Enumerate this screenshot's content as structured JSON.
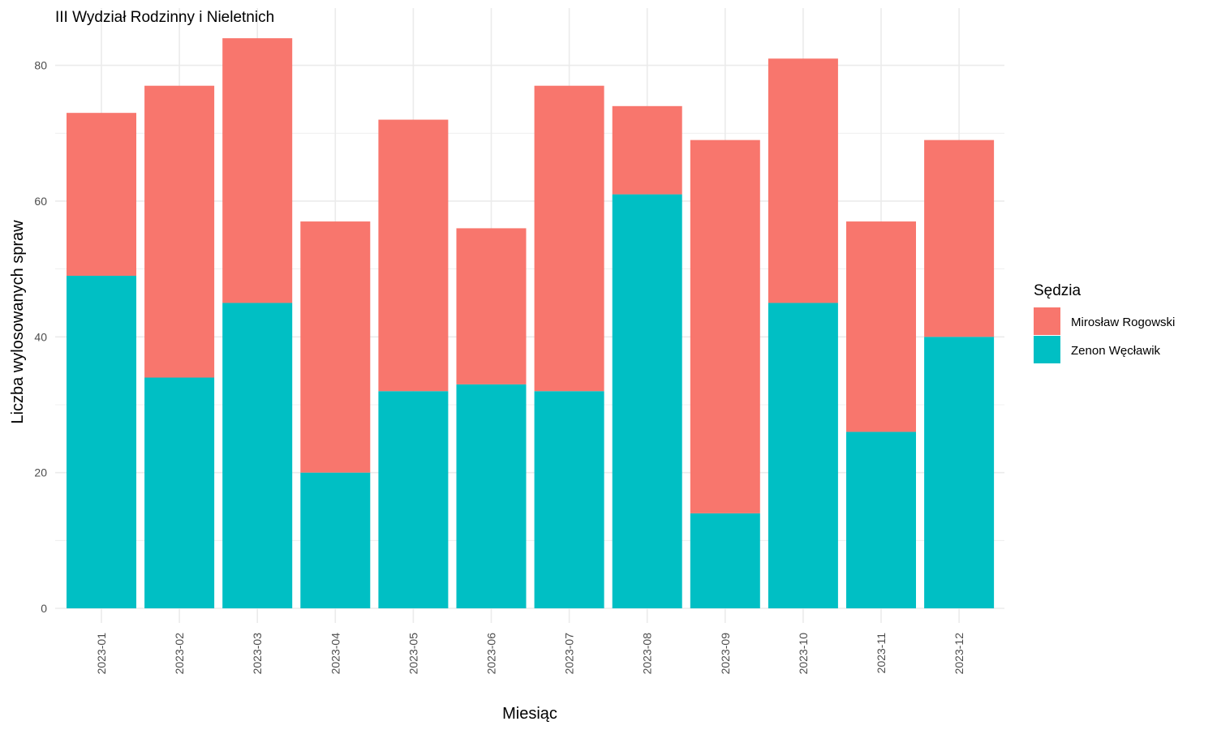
{
  "chart_data": {
    "type": "bar",
    "stacked": true,
    "title": "III Wydział Rodzinny i Nieletnich",
    "xlabel": "Miesiąc",
    "ylabel": "Liczba wylosowanych spraw",
    "ylim": [
      0,
      88
    ],
    "yticks": [
      0,
      20,
      40,
      60,
      80
    ],
    "grid": true,
    "legend": {
      "title": "Sędzia",
      "position": "right"
    },
    "categories": [
      "2023-01",
      "2023-02",
      "2023-03",
      "2023-04",
      "2023-05",
      "2023-06",
      "2023-07",
      "2023-08",
      "2023-09",
      "2023-10",
      "2023-11",
      "2023-12"
    ],
    "series": [
      {
        "name": "Zenon Węcławik",
        "color": "#00BFC4",
        "values": [
          49,
          34,
          45,
          20,
          32,
          33,
          32,
          61,
          14,
          45,
          26,
          40
        ]
      },
      {
        "name": "Mirosław Rogowski",
        "color": "#F8766D",
        "values": [
          24,
          43,
          39,
          37,
          40,
          23,
          45,
          13,
          55,
          36,
          31,
          29
        ]
      }
    ],
    "legend_order": [
      1,
      0
    ]
  }
}
